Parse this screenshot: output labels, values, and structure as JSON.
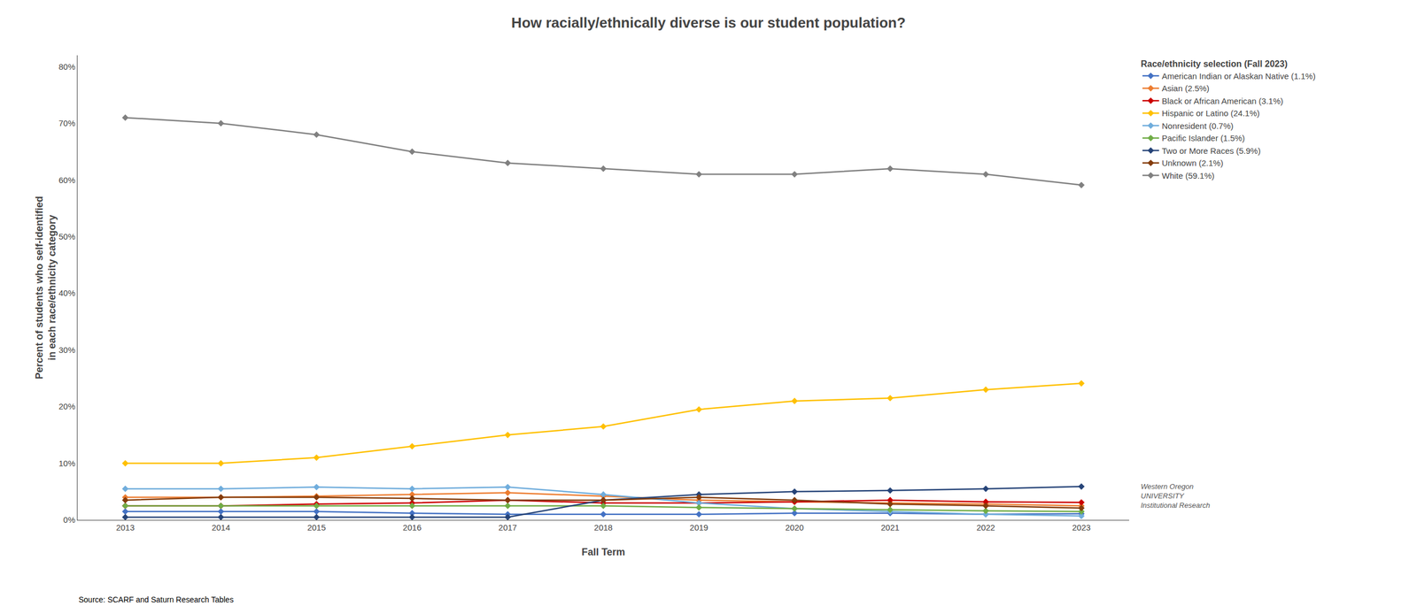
{
  "chart_data": {
    "type": "line",
    "title": "How racially/ethnically diverse is our student population?",
    "xlabel": "Fall Term",
    "ylabel": "Percent of students who self-identified\nin each race/ethnicity category",
    "legend_title": "Race/ethnicity selection (Fall 2023)",
    "annotations": [
      "Source: SCARF and Saturn Research Tables",
      "Western Oregon\nUNIVERSITY\nInstitutional Research"
    ],
    "x": [
      2013,
      2014,
      2015,
      2016,
      2017,
      2018,
      2019,
      2020,
      2021,
      2022,
      2023
    ],
    "series": [
      {
        "name": "American Indian or Alaskan Native (1.1%)",
        "color": "#4472C4",
        "values": [
          1.5,
          1.5,
          1.5,
          1.2,
          1.0,
          1.0,
          1.0,
          1.2,
          1.2,
          1.0,
          1.1
        ]
      },
      {
        "name": "Asian (2.5%)",
        "color": "#ED7D31",
        "values": [
          4.0,
          4.0,
          4.2,
          4.5,
          4.8,
          4.2,
          3.5,
          3.2,
          3.0,
          2.8,
          2.5
        ]
      },
      {
        "name": "Black or African American (3.1%)",
        "color": "#CC0000",
        "values": [
          2.5,
          2.5,
          2.8,
          3.0,
          3.5,
          3.0,
          3.0,
          3.2,
          3.5,
          3.2,
          3.1
        ]
      },
      {
        "name": "Hispanic or Latino (24.1%)",
        "color": "#FFC000",
        "values": [
          10.0,
          10.0,
          11.0,
          13.0,
          15.0,
          16.5,
          19.5,
          21.0,
          21.5,
          23.0,
          24.1
        ]
      },
      {
        "name": "Nonresident (0.7%)",
        "color": "#70ADDC",
        "values": [
          5.5,
          5.5,
          5.8,
          5.5,
          5.8,
          4.5,
          3.0,
          2.0,
          1.5,
          1.0,
          0.7
        ]
      },
      {
        "name": "Pacific Islander (1.5%)",
        "color": "#70AD47",
        "values": [
          2.5,
          2.5,
          2.5,
          2.5,
          2.5,
          2.5,
          2.2,
          2.0,
          1.8,
          1.6,
          1.5
        ]
      },
      {
        "name": "Two or More Races (5.9%)",
        "color": "#264478",
        "values": [
          0.5,
          0.5,
          0.5,
          0.5,
          0.5,
          3.5,
          4.5,
          5.0,
          5.2,
          5.5,
          5.9
        ]
      },
      {
        "name": "Unknown (2.1%)",
        "color": "#843C0C",
        "values": [
          3.5,
          4.0,
          4.0,
          3.8,
          3.5,
          3.5,
          4.0,
          3.5,
          2.8,
          2.5,
          2.1
        ]
      },
      {
        "name": "White (59.1%)",
        "color": "#808080",
        "values": [
          71.0,
          70.0,
          68.0,
          65.0,
          63.0,
          62.0,
          61.0,
          61.0,
          62.0,
          61.0,
          59.1
        ]
      }
    ],
    "xlim": [
      2012.5,
      2023.5
    ],
    "xticks": [
      2013,
      2014,
      2015,
      2016,
      2017,
      2018,
      2019,
      2020,
      2021,
      2022,
      2023
    ],
    "ylim": [
      0,
      82
    ],
    "yticks": [
      {
        "value": 0,
        "label": "0%"
      },
      {
        "value": 10,
        "label": "10%"
      },
      {
        "value": 20,
        "label": "20%"
      },
      {
        "value": 30,
        "label": "30%"
      },
      {
        "value": 40,
        "label": "40%"
      },
      {
        "value": 50,
        "label": "50%"
      },
      {
        "value": 60,
        "label": "60%"
      },
      {
        "value": 70,
        "label": "70%"
      },
      {
        "value": 80,
        "label": "80%"
      }
    ],
    "grid": false,
    "legend": "upper right",
    "marker": "diamond",
    "line_style": "solid"
  }
}
